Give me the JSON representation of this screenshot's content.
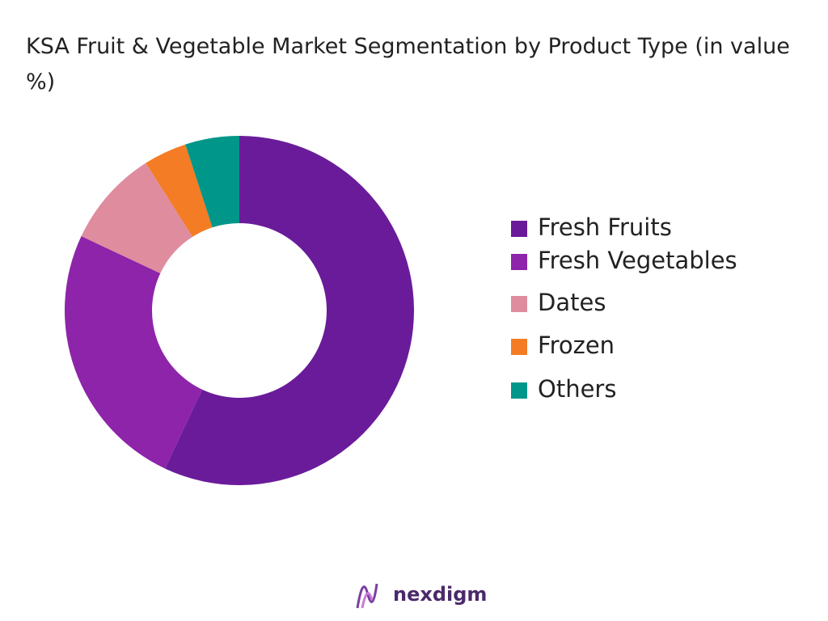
{
  "chart_data": {
    "type": "donut",
    "title": "KSA Fruit & Vegetable Market Segmentation by Product Type (in value %)",
    "categories": [
      "Fresh Fruits",
      "Fresh Vegetables",
      "Dates",
      "Frozen",
      "Others"
    ],
    "values": [
      57,
      25,
      9,
      4,
      5
    ],
    "colors": [
      "#6a1b9a",
      "#8e24aa",
      "#df8c9f",
      "#f47c24",
      "#00968a"
    ],
    "legend": "right"
  },
  "logo": "nexdigm"
}
